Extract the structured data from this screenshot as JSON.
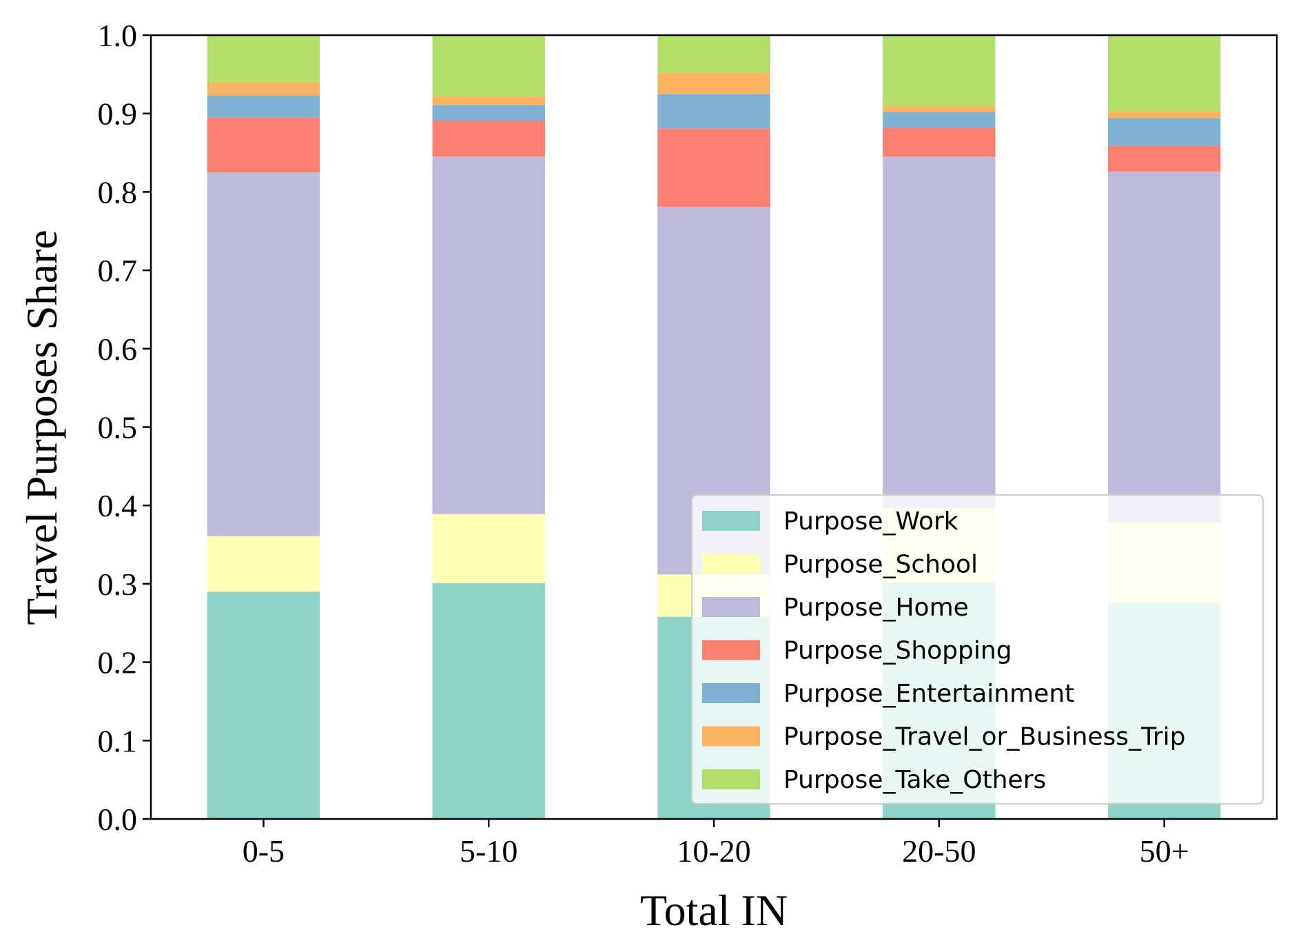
{
  "chart_data": {
    "type": "bar",
    "stacked": true,
    "xlabel": "Total IN",
    "ylabel": "Travel Purposes Share",
    "ylim": [
      0,
      1.0
    ],
    "yticks": [
      "0.0",
      "0.1",
      "0.2",
      "0.3",
      "0.4",
      "0.5",
      "0.6",
      "0.7",
      "0.8",
      "0.9",
      "1.0"
    ],
    "categories": [
      "0-5",
      "5-10",
      "10-20",
      "20-50",
      "50+"
    ],
    "grid": false,
    "legend_position": "lower-right",
    "series": [
      {
        "name": "Purpose_Work",
        "color": "#8dd3c7",
        "values": [
          0.29,
          0.301,
          0.258,
          0.302,
          0.275
        ]
      },
      {
        "name": "Purpose_School",
        "color": "#ffffb3",
        "values": [
          0.071,
          0.088,
          0.054,
          0.095,
          0.103
        ]
      },
      {
        "name": "Purpose_Home",
        "color": "#bebada",
        "values": [
          0.464,
          0.456,
          0.469,
          0.448,
          0.448
        ]
      },
      {
        "name": "Purpose_Shopping",
        "color": "#fb8072",
        "values": [
          0.07,
          0.046,
          0.1,
          0.037,
          0.033
        ]
      },
      {
        "name": "Purpose_Entertainment",
        "color": "#80b1d3",
        "values": [
          0.028,
          0.02,
          0.044,
          0.02,
          0.035
        ]
      },
      {
        "name": "Purpose_Travel_or_Business_Trip",
        "color": "#fdb462",
        "values": [
          0.017,
          0.011,
          0.027,
          0.008,
          0.009
        ]
      },
      {
        "name": "Purpose_Take_Others",
        "color": "#b3de69",
        "values": [
          0.06,
          0.078,
          0.048,
          0.09,
          0.097
        ]
      }
    ]
  }
}
